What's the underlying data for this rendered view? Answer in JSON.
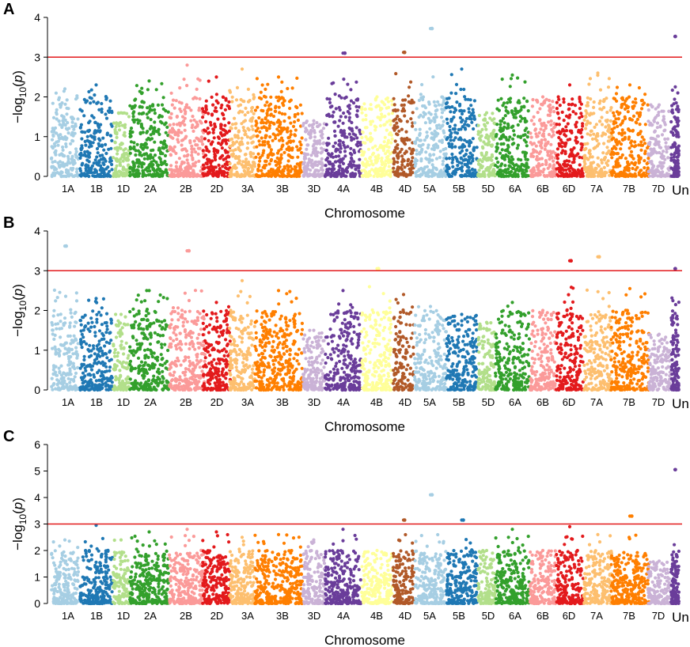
{
  "figure": {
    "panel_labels": [
      "A",
      "B",
      "C"
    ],
    "chromosome_colors": {
      "1A": "#a6cee3",
      "1B": "#1f78b4",
      "1D": "#b2df8a",
      "2A": "#33a02c",
      "2B": "#fb9a99",
      "2D": "#e31a1c",
      "3A": "#fdbf6f",
      "3B": "#ff7f00",
      "3D": "#cab2d6",
      "4A": "#6a3d9a",
      "4B": "#ffff99",
      "4D": "#b15928",
      "5A": "#a6cee3",
      "5B": "#1f78b4",
      "5D": "#b2df8a",
      "6A": "#33a02c",
      "6B": "#fb9a99",
      "6D": "#e31a1c",
      "7A": "#fdbf6f",
      "7B": "#ff7f00",
      "7D": "#cab2d6",
      "Un": "#6a3d9a"
    },
    "threshold_color": "#e31a1c"
  },
  "chart_data": [
    {
      "type": "scatter",
      "subtype": "manhattan",
      "panel": "A",
      "xlabel": "Chromosome",
      "ylabel": "−log10(p)",
      "ylim": [
        0,
        4
      ],
      "yticks": [
        0,
        1,
        2,
        3,
        4
      ],
      "threshold": 3,
      "categories": [
        "1A",
        "1B",
        "1D",
        "2A",
        "2B",
        "2D",
        "3A",
        "3B",
        "3D",
        "4A",
        "4B",
        "4D",
        "5A",
        "5B",
        "5D",
        "6A",
        "6B",
        "6D",
        "7A",
        "7B",
        "7D",
        "Un"
      ],
      "max_per_chromosome": [
        2.2,
        2.3,
        1.6,
        2.4,
        2.8,
        2.5,
        2.7,
        2.5,
        1.4,
        3.1,
        2.0,
        3.12,
        3.72,
        2.7,
        1.6,
        2.55,
        2.0,
        2.3,
        2.6,
        2.3,
        1.8,
        3.52
      ],
      "significant_peaks": [
        {
          "chromosome": "4A",
          "value": 3.1
        },
        {
          "chromosome": "4D",
          "value": 3.12
        },
        {
          "chromosome": "5A",
          "value": 3.72
        },
        {
          "chromosome": "Un",
          "value": 3.52
        }
      ]
    },
    {
      "type": "scatter",
      "subtype": "manhattan",
      "panel": "B",
      "xlabel": "Chromosome",
      "ylabel": "−log10(p)",
      "ylim": [
        0,
        4
      ],
      "yticks": [
        0,
        1,
        2,
        3,
        4
      ],
      "threshold": 3,
      "categories": [
        "1A",
        "1B",
        "1D",
        "2A",
        "2B",
        "2D",
        "3A",
        "3B",
        "3D",
        "4A",
        "4B",
        "4D",
        "5A",
        "5B",
        "5D",
        "6A",
        "6B",
        "6D",
        "7A",
        "7B",
        "7D",
        "Un"
      ],
      "max_per_chromosome": [
        3.62,
        2.3,
        1.9,
        2.5,
        3.5,
        2.2,
        2.75,
        2.5,
        1.5,
        2.5,
        3.05,
        2.4,
        2.1,
        1.9,
        1.7,
        2.2,
        2.0,
        3.25,
        3.35,
        2.55,
        1.4,
        3.05
      ],
      "significant_peaks": [
        {
          "chromosome": "1A",
          "value": 3.62
        },
        {
          "chromosome": "2B",
          "value": 3.5
        },
        {
          "chromosome": "4B",
          "value": 3.05
        },
        {
          "chromosome": "6D",
          "value": 3.25
        },
        {
          "chromosome": "7A",
          "value": 3.35
        },
        {
          "chromosome": "Un",
          "value": 3.05
        }
      ]
    },
    {
      "type": "scatter",
      "subtype": "manhattan",
      "panel": "C",
      "xlabel": "Chromosome",
      "ylabel": "−log10(p)",
      "ylim": [
        0,
        6
      ],
      "yticks": [
        0,
        1,
        2,
        3,
        4,
        5,
        6
      ],
      "threshold": 3,
      "categories": [
        "1A",
        "1B",
        "1D",
        "2A",
        "2B",
        "2D",
        "3A",
        "3B",
        "3D",
        "4A",
        "4B",
        "4D",
        "5A",
        "5B",
        "5D",
        "6A",
        "6B",
        "6D",
        "7A",
        "7B",
        "7D",
        "Un"
      ],
      "max_per_chromosome": [
        2.4,
        2.95,
        2.4,
        2.7,
        2.8,
        2.7,
        2.5,
        2.6,
        2.4,
        2.8,
        2.0,
        3.15,
        4.1,
        3.15,
        2.0,
        2.8,
        2.0,
        2.9,
        2.6,
        3.3,
        1.6,
        5.05
      ],
      "significant_peaks": [
        {
          "chromosome": "4D",
          "value": 3.15
        },
        {
          "chromosome": "5A",
          "value": 4.1
        },
        {
          "chromosome": "5B",
          "value": 3.15
        },
        {
          "chromosome": "7B",
          "value": 3.3
        },
        {
          "chromosome": "Un",
          "value": 5.05
        }
      ]
    }
  ]
}
